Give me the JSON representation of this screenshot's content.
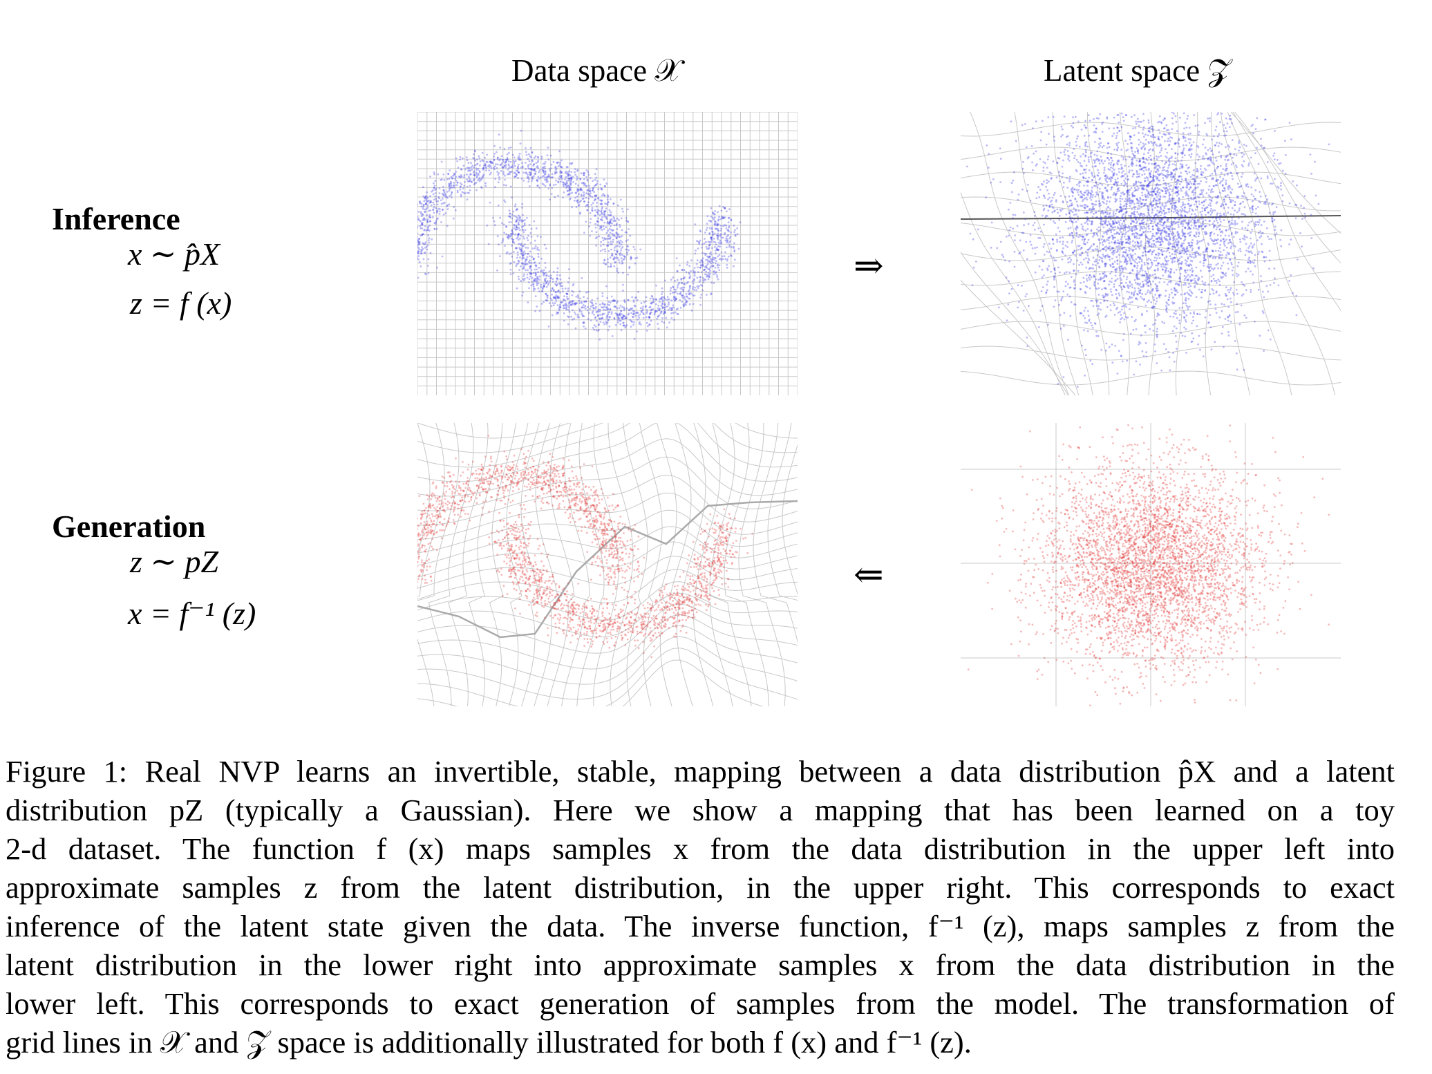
{
  "columns": {
    "data_space": "Data space 𝒳",
    "latent_space": "Latent space 𝒵"
  },
  "rows": {
    "inference": {
      "title": "Inference",
      "eq1": "x ∼ p̂X",
      "eq2": "z = f (x)",
      "arrow": "⇒"
    },
    "generation": {
      "title": "Generation",
      "eq1": "z ∼ pZ",
      "eq2": "x = f⁻¹ (z)",
      "arrow": "⇐"
    }
  },
  "colors": {
    "inference_points": "#3a3ae6",
    "generation_points": "#e23a3a",
    "grid": "#c8c8c8"
  },
  "caption": {
    "lines": [
      "Figure 1: Real NVP learns an invertible, stable, mapping between a data distribution p̂X and a latent",
      "distribution pZ (typically a Gaussian). Here we show a mapping that has been learned on a toy",
      "2-d dataset. The function f (x) maps samples x from the data distribution in the upper left into",
      "approximate samples z from the latent distribution, in the upper right. This corresponds to exact",
      "inference of the latent state given the data. The inverse function, f⁻¹ (z), maps samples z from the",
      "latent distribution in the lower right into approximate samples x from the data distribution in the",
      "lower left. This corresponds to exact generation of samples from the model. The transformation of",
      "grid lines in 𝒳 and 𝒵 space is additionally illustrated for both f (x) and f⁻¹ (z)."
    ]
  }
}
